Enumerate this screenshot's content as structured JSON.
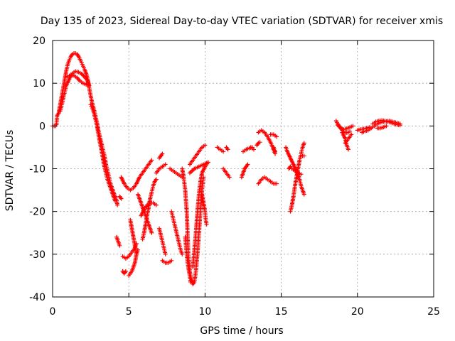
{
  "chart_data": {
    "type": "scatter",
    "title": "Day 135 of 2023, Sidereal Day-to-day VTEC variation (SDTVAR) for receiver xmis",
    "xlabel": "GPS time / hours",
    "ylabel": "SDTVAR / TECUs",
    "xlim": [
      0,
      25
    ],
    "ylim": [
      -40,
      20
    ],
    "x_ticks": [
      0,
      5,
      10,
      15,
      20,
      25
    ],
    "y_ticks": [
      -40,
      -30,
      -20,
      -10,
      0,
      10,
      20
    ],
    "grid": true,
    "marker": "+",
    "color": "#ff0000",
    "segments": [
      [
        [
          0.0,
          0
        ],
        [
          0.1,
          0
        ],
        [
          0.2,
          0
        ],
        [
          0.25,
          0.3
        ],
        [
          0.3,
          2.5
        ],
        [
          0.4,
          3
        ],
        [
          0.5,
          5
        ],
        [
          0.6,
          7
        ],
        [
          0.7,
          9
        ],
        [
          0.8,
          11
        ],
        [
          0.9,
          13
        ],
        [
          1.0,
          14.5
        ],
        [
          1.1,
          15.5
        ],
        [
          1.2,
          16.3
        ],
        [
          1.3,
          16.8
        ],
        [
          1.4,
          17
        ],
        [
          1.5,
          17
        ],
        [
          1.6,
          16.8
        ],
        [
          1.7,
          16.3
        ],
        [
          1.8,
          15.6
        ],
        [
          1.9,
          14.8
        ],
        [
          2.0,
          14
        ],
        [
          2.1,
          13.2
        ],
        [
          2.2,
          12.3
        ],
        [
          2.3,
          11
        ],
        [
          2.4,
          9
        ],
        [
          2.5,
          7
        ],
        [
          2.6,
          5.3
        ],
        [
          2.7,
          4
        ],
        [
          2.8,
          2.5
        ],
        [
          2.9,
          1
        ],
        [
          3.0,
          -1
        ],
        [
          3.1,
          -2.5
        ],
        [
          3.2,
          -4
        ],
        [
          3.3,
          -5.5
        ],
        [
          3.4,
          -7
        ],
        [
          3.5,
          -9
        ],
        [
          3.6,
          -10.5
        ],
        [
          3.7,
          -12
        ],
        [
          3.8,
          -13.5
        ],
        [
          3.9,
          -14.5
        ],
        [
          4.0,
          -15.5
        ],
        [
          4.1,
          -16.5
        ],
        [
          4.2,
          -17.5
        ],
        [
          4.25,
          -18.5
        ]
      ],
      [
        [
          0.5,
          3.5
        ],
        [
          0.7,
          6.5
        ],
        [
          0.9,
          9.5
        ],
        [
          1.1,
          11
        ],
        [
          1.3,
          12.3
        ],
        [
          1.5,
          12.8
        ],
        [
          1.7,
          12.6
        ],
        [
          1.9,
          12.2
        ],
        [
          2.1,
          11.5
        ],
        [
          2.3,
          10.5
        ],
        [
          2.4,
          9.5
        ]
      ],
      [
        [
          1.0,
          11.5
        ],
        [
          1.2,
          12
        ],
        [
          1.4,
          11.8
        ],
        [
          1.6,
          11.3
        ],
        [
          1.8,
          10.5
        ],
        [
          2.0,
          10
        ],
        [
          2.2,
          9.7
        ],
        [
          2.4,
          9.5
        ]
      ],
      [
        [
          2.5,
          5
        ],
        [
          2.6,
          4.2
        ],
        [
          2.7,
          3.2
        ],
        [
          2.8,
          1.8
        ],
        [
          2.9,
          0.3
        ],
        [
          3.0,
          -1.8
        ],
        [
          3.1,
          -3.8
        ],
        [
          3.2,
          -5.5
        ],
        [
          3.3,
          -7.5
        ],
        [
          3.4,
          -9.5
        ],
        [
          3.5,
          -11
        ],
        [
          3.6,
          -12.5
        ],
        [
          3.7,
          -13.5
        ],
        [
          3.8,
          -14.5
        ],
        [
          3.9,
          -15.5
        ],
        [
          4.0,
          -16.5
        ],
        [
          4.1,
          -17.5
        ]
      ],
      [
        [
          4.2,
          -26
        ],
        [
          4.3,
          -27
        ],
        [
          4.4,
          -28
        ]
      ],
      [
        [
          4.6,
          -34
        ],
        [
          4.7,
          -34.5
        ],
        [
          4.8,
          -34
        ]
      ],
      [
        [
          4.5,
          -12
        ],
        [
          4.7,
          -13.5
        ],
        [
          4.9,
          -14.5
        ],
        [
          5.1,
          -15
        ],
        [
          5.3,
          -14.5
        ],
        [
          5.5,
          -13.5
        ],
        [
          5.7,
          -12
        ],
        [
          5.9,
          -11
        ],
        [
          6.1,
          -10
        ],
        [
          6.3,
          -9
        ],
        [
          6.5,
          -8
        ]
      ],
      [
        [
          4.4,
          -16.5
        ],
        [
          4.5,
          -17
        ]
      ],
      [
        [
          4.6,
          -30.5
        ],
        [
          4.8,
          -31
        ],
        [
          5.0,
          -30.5
        ],
        [
          5.2,
          -29.5
        ],
        [
          5.4,
          -28.5
        ],
        [
          5.5,
          -27.5
        ]
      ],
      [
        [
          5.0,
          -35
        ],
        [
          5.2,
          -34
        ],
        [
          5.4,
          -32
        ],
        [
          5.5,
          -30
        ],
        [
          5.6,
          -29
        ]
      ],
      [
        [
          5.1,
          -22
        ],
        [
          5.2,
          -24
        ],
        [
          5.3,
          -26
        ],
        [
          5.4,
          -28
        ],
        [
          5.5,
          -30
        ]
      ],
      [
        [
          5.6,
          -16
        ],
        [
          5.8,
          -18
        ],
        [
          6.0,
          -20
        ],
        [
          6.2,
          -22
        ],
        [
          6.4,
          -24
        ],
        [
          6.5,
          -25
        ]
      ],
      [
        [
          5.9,
          -26.5
        ],
        [
          6.0,
          -25
        ],
        [
          6.1,
          -23
        ],
        [
          6.2,
          -21
        ],
        [
          6.3,
          -19
        ],
        [
          6.4,
          -17
        ],
        [
          6.5,
          -15.5
        ],
        [
          6.6,
          -14
        ],
        [
          6.7,
          -13
        ],
        [
          6.8,
          -12.5
        ]
      ],
      [
        [
          5.8,
          -21
        ],
        [
          6.0,
          -19.5
        ],
        [
          6.2,
          -18.5
        ],
        [
          6.4,
          -18
        ],
        [
          6.6,
          -18
        ],
        [
          6.8,
          -18.5
        ]
      ],
      [
        [
          6.8,
          -11
        ],
        [
          7.0,
          -10
        ],
        [
          7.2,
          -9.5
        ],
        [
          7.4,
          -9
        ]
      ],
      [
        [
          7.0,
          -7.5
        ],
        [
          7.1,
          -7
        ],
        [
          7.2,
          -6.5
        ]
      ],
      [
        [
          7.0,
          -24
        ],
        [
          7.1,
          -25.5
        ],
        [
          7.2,
          -27
        ],
        [
          7.3,
          -28.5
        ],
        [
          7.4,
          -30
        ]
      ],
      [
        [
          7.2,
          -31.5
        ],
        [
          7.4,
          -32
        ],
        [
          7.6,
          -32
        ],
        [
          7.8,
          -31.5
        ]
      ],
      [
        [
          7.7,
          -10
        ],
        [
          7.9,
          -10.5
        ],
        [
          8.1,
          -11
        ],
        [
          8.3,
          -11.5
        ],
        [
          8.5,
          -12
        ]
      ],
      [
        [
          7.8,
          -20
        ],
        [
          7.9,
          -21.5
        ],
        [
          8.0,
          -23
        ],
        [
          8.1,
          -24.5
        ],
        [
          8.2,
          -26
        ],
        [
          8.3,
          -27.5
        ],
        [
          8.4,
          -29
        ],
        [
          8.5,
          -30
        ]
      ],
      [
        [
          8.5,
          -10
        ],
        [
          8.6,
          -12
        ],
        [
          8.7,
          -15
        ],
        [
          8.8,
          -20
        ],
        [
          8.85,
          -25
        ],
        [
          8.9,
          -30
        ],
        [
          9.0,
          -34
        ],
        [
          9.1,
          -36
        ],
        [
          9.2,
          -37
        ],
        [
          9.3,
          -36.5
        ],
        [
          9.4,
          -34
        ],
        [
          9.5,
          -30
        ],
        [
          9.6,
          -25
        ],
        [
          9.7,
          -20
        ],
        [
          9.8,
          -15
        ],
        [
          9.9,
          -12
        ]
      ],
      [
        [
          8.7,
          -26
        ],
        [
          8.8,
          -30
        ],
        [
          8.9,
          -33
        ],
        [
          9.0,
          -35
        ],
        [
          9.05,
          -36.5
        ]
      ],
      [
        [
          9.2,
          -33
        ],
        [
          9.3,
          -29
        ],
        [
          9.4,
          -25
        ],
        [
          9.5,
          -20
        ],
        [
          9.6,
          -16
        ],
        [
          9.7,
          -13
        ],
        [
          9.8,
          -11
        ],
        [
          10.0,
          -9.5
        ],
        [
          10.2,
          -8.5
        ]
      ],
      [
        [
          9.0,
          -11
        ],
        [
          9.3,
          -10
        ],
        [
          9.6,
          -9.5
        ],
        [
          9.9,
          -9
        ],
        [
          10.2,
          -8.5
        ]
      ],
      [
        [
          9.0,
          -9
        ],
        [
          9.2,
          -8
        ],
        [
          9.4,
          -7
        ],
        [
          9.6,
          -6
        ],
        [
          9.8,
          -5
        ],
        [
          10.0,
          -4.5
        ]
      ],
      [
        [
          9.8,
          -16
        ],
        [
          9.9,
          -18
        ],
        [
          10.0,
          -20
        ],
        [
          10.05,
          -22
        ],
        [
          10.1,
          -23
        ]
      ],
      [
        [
          10.8,
          -5
        ],
        [
          11.0,
          -5.5
        ],
        [
          11.2,
          -6
        ]
      ],
      [
        [
          11.2,
          -10
        ],
        [
          11.4,
          -11
        ],
        [
          11.6,
          -12
        ]
      ],
      [
        [
          11.4,
          -5
        ],
        [
          11.5,
          -5.5
        ]
      ],
      [
        [
          12.4,
          -12
        ],
        [
          12.5,
          -11
        ],
        [
          12.6,
          -10
        ],
        [
          12.7,
          -9.5
        ],
        [
          12.8,
          -9
        ]
      ],
      [
        [
          12.5,
          -6
        ],
        [
          12.7,
          -5.5
        ],
        [
          12.9,
          -5.2
        ],
        [
          13.1,
          -5
        ]
      ],
      [
        [
          13.0,
          -5
        ],
        [
          13.2,
          -5.5
        ]
      ],
      [
        [
          13.4,
          -4.5
        ],
        [
          13.5,
          -4
        ],
        [
          13.6,
          -3.8
        ]
      ],
      [
        [
          13.5,
          -1.5
        ],
        [
          13.7,
          -1
        ],
        [
          13.9,
          -1.5
        ],
        [
          14.1,
          -2.5
        ],
        [
          14.3,
          -3.8
        ],
        [
          14.5,
          -5.5
        ],
        [
          14.6,
          -6.5
        ]
      ],
      [
        [
          13.5,
          -13.5
        ],
        [
          13.7,
          -12.5
        ],
        [
          13.9,
          -12
        ],
        [
          14.1,
          -12.5
        ],
        [
          14.3,
          -13
        ],
        [
          14.5,
          -13.5
        ],
        [
          14.7,
          -13.5
        ]
      ],
      [
        [
          14.3,
          -2
        ],
        [
          14.5,
          -2
        ],
        [
          14.7,
          -2.5
        ]
      ],
      [
        [
          14.5,
          -5
        ],
        [
          14.6,
          -6
        ]
      ],
      [
        [
          15.3,
          -5
        ],
        [
          15.4,
          -6
        ],
        [
          15.6,
          -7.5
        ],
        [
          15.8,
          -9
        ],
        [
          16.0,
          -10.5
        ],
        [
          16.2,
          -12.5
        ],
        [
          16.3,
          -14
        ],
        [
          16.4,
          -15
        ],
        [
          16.5,
          -16
        ]
      ],
      [
        [
          15.5,
          -10
        ],
        [
          15.6,
          -9.5
        ]
      ],
      [
        [
          15.6,
          -20
        ],
        [
          15.7,
          -18.5
        ],
        [
          15.8,
          -16.5
        ],
        [
          15.9,
          -14
        ],
        [
          16.0,
          -12
        ],
        [
          16.1,
          -10
        ],
        [
          16.2,
          -8
        ],
        [
          16.3,
          -6.5
        ],
        [
          16.4,
          -5
        ],
        [
          16.5,
          -4
        ]
      ],
      [
        [
          15.7,
          -10
        ],
        [
          15.9,
          -10.5
        ],
        [
          16.1,
          -11
        ],
        [
          16.3,
          -11.3
        ]
      ],
      [
        [
          16.4,
          -7
        ],
        [
          16.5,
          -7
        ]
      ],
      [
        [
          18.6,
          1.2
        ],
        [
          18.7,
          0.5
        ],
        [
          18.8,
          0
        ],
        [
          18.9,
          -0.5
        ],
        [
          19.0,
          -1
        ],
        [
          19.1,
          -1.3
        ],
        [
          19.2,
          -1.5
        ],
        [
          19.3,
          -1.6
        ],
        [
          19.4,
          -1.5
        ],
        [
          19.5,
          -1.2
        ]
      ],
      [
        [
          18.7,
          0.2
        ],
        [
          18.9,
          -0.5
        ],
        [
          19.1,
          -0.8
        ],
        [
          19.3,
          -0.6
        ],
        [
          19.5,
          -0.3
        ],
        [
          19.7,
          0
        ]
      ],
      [
        [
          19.0,
          -1.5
        ],
        [
          19.2,
          -3
        ],
        [
          19.3,
          -4.5
        ],
        [
          19.4,
          -5.5
        ]
      ],
      [
        [
          19.2,
          -4
        ],
        [
          19.4,
          -3
        ],
        [
          19.6,
          -2
        ]
      ],
      [
        [
          20.0,
          -1
        ],
        [
          20.2,
          -0.8
        ],
        [
          20.4,
          -0.7
        ],
        [
          20.6,
          -0.5
        ],
        [
          20.8,
          -0.3
        ]
      ],
      [
        [
          20.3,
          -1.5
        ],
        [
          20.5,
          -1.2
        ],
        [
          20.7,
          -1
        ],
        [
          20.9,
          -0.5
        ],
        [
          21.1,
          0
        ],
        [
          21.3,
          0.5
        ],
        [
          21.5,
          0.8
        ],
        [
          21.7,
          1
        ],
        [
          21.9,
          1.1
        ],
        [
          22.1,
          1.2
        ],
        [
          22.3,
          1
        ],
        [
          22.5,
          0.8
        ],
        [
          22.7,
          0.6
        ],
        [
          22.8,
          0.5
        ]
      ],
      [
        [
          21.0,
          0.5
        ],
        [
          21.2,
          1
        ],
        [
          21.4,
          1.2
        ],
        [
          21.6,
          1.3
        ],
        [
          21.8,
          1.2
        ],
        [
          22.0,
          1
        ],
        [
          22.2,
          0.8
        ],
        [
          22.4,
          0.5
        ],
        [
          22.6,
          0.3
        ],
        [
          22.8,
          0.2
        ]
      ],
      [
        [
          21.3,
          -0.5
        ],
        [
          21.5,
          -0.5
        ],
        [
          21.7,
          -0.3
        ],
        [
          21.9,
          0
        ]
      ]
    ]
  }
}
